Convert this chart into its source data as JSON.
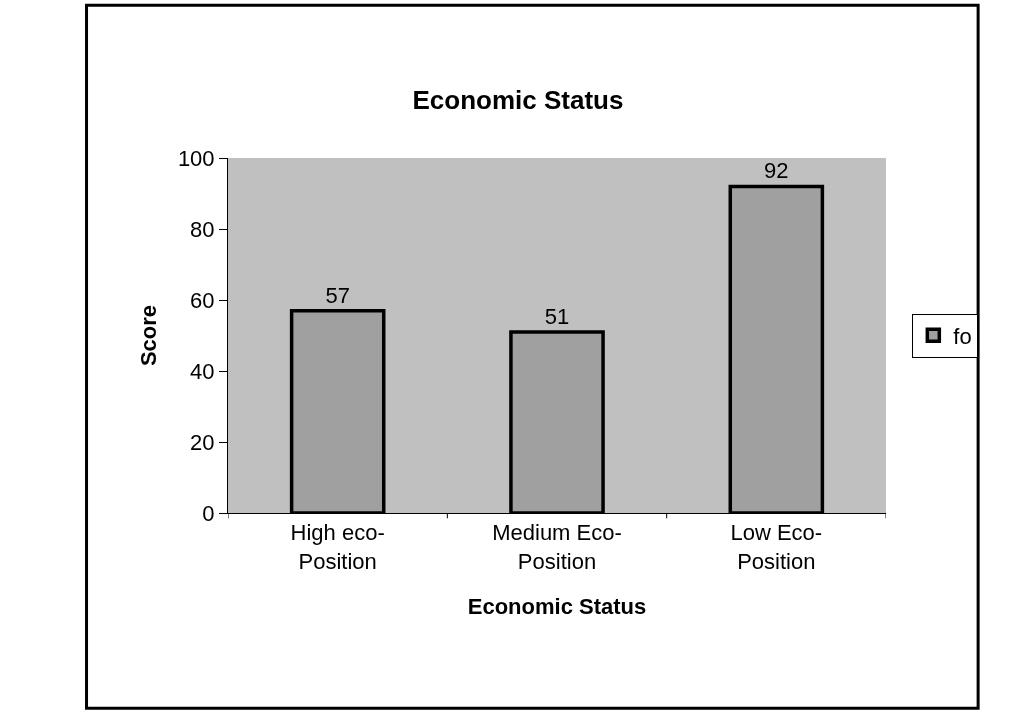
{
  "chart_data": {
    "type": "bar",
    "title": "Economic Status",
    "xlabel": "Economic Status",
    "ylabel": "Score",
    "categories": [
      "High eco-\nPosition",
      "Medium Eco-\nPosition",
      "Low Eco-\nPosition"
    ],
    "series": [
      {
        "name": "fo",
        "color": "#a0a0a0",
        "values": [
          57,
          51,
          92
        ]
      }
    ],
    "ylim": [
      0,
      100
    ],
    "yticks": [
      0,
      20,
      40,
      60,
      80,
      100
    ],
    "data_labels": true,
    "legend": "right",
    "grid": false
  }
}
